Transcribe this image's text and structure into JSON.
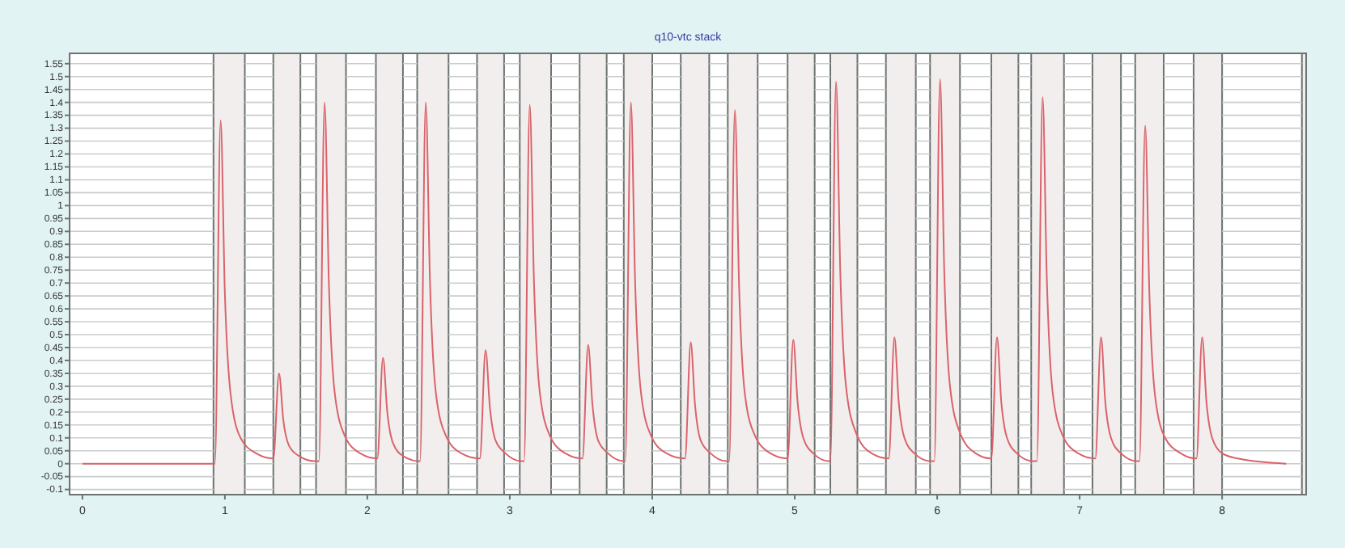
{
  "chart_data": {
    "type": "line",
    "title": "q10-vtc stack",
    "xlim": [
      -0.09,
      8.59
    ],
    "xticks": [
      0,
      1,
      2,
      3,
      4,
      5,
      6,
      7,
      8
    ],
    "ylim": [
      -0.12,
      1.59
    ],
    "yticks": [
      -0.1,
      -0.05,
      0,
      0.05,
      0.1,
      0.15,
      0.2,
      0.25,
      0.3,
      0.35,
      0.4,
      0.45,
      0.5,
      0.55,
      0.6,
      0.65,
      0.7,
      0.75,
      0.8,
      0.85,
      0.9,
      0.95,
      1,
      1.05,
      1.1,
      1.15,
      1.2,
      1.25,
      1.3,
      1.35,
      1.4,
      1.45,
      1.5,
      1.55
    ],
    "grid": "y",
    "marker": "none",
    "line_style": "solid",
    "bands": [
      {
        "axis": "x",
        "from": -0.09,
        "to": 0.92,
        "color": "#ffffff"
      },
      {
        "axis": "x",
        "from": 1.14,
        "to": 1.34,
        "color": "#ffffff"
      },
      {
        "axis": "x",
        "from": 1.53,
        "to": 1.64,
        "color": "#ffffff"
      },
      {
        "axis": "x",
        "from": 1.85,
        "to": 2.06,
        "color": "#ffffff"
      },
      {
        "axis": "x",
        "from": 2.25,
        "to": 2.35,
        "color": "#ffffff"
      },
      {
        "axis": "x",
        "from": 2.57,
        "to": 2.77,
        "color": "#ffffff"
      },
      {
        "axis": "x",
        "from": 2.96,
        "to": 3.07,
        "color": "#ffffff"
      },
      {
        "axis": "x",
        "from": 3.29,
        "to": 3.49,
        "color": "#ffffff"
      },
      {
        "axis": "x",
        "from": 3.68,
        "to": 3.8,
        "color": "#ffffff"
      },
      {
        "axis": "x",
        "from": 4.0,
        "to": 4.2,
        "color": "#ffffff"
      },
      {
        "axis": "x",
        "from": 4.4,
        "to": 4.53,
        "color": "#ffffff"
      },
      {
        "axis": "x",
        "from": 4.74,
        "to": 4.95,
        "color": "#ffffff"
      },
      {
        "axis": "x",
        "from": 5.14,
        "to": 5.25,
        "color": "#ffffff"
      },
      {
        "axis": "x",
        "from": 5.44,
        "to": 5.64,
        "color": "#ffffff"
      },
      {
        "axis": "x",
        "from": 5.85,
        "to": 5.95,
        "color": "#ffffff"
      },
      {
        "axis": "x",
        "from": 6.16,
        "to": 6.38,
        "color": "#ffffff"
      },
      {
        "axis": "x",
        "from": 6.57,
        "to": 6.66,
        "color": "#ffffff"
      },
      {
        "axis": "x",
        "from": 6.89,
        "to": 7.09,
        "color": "#ffffff"
      },
      {
        "axis": "x",
        "from": 7.29,
        "to": 7.39,
        "color": "#ffffff"
      },
      {
        "axis": "x",
        "from": 7.59,
        "to": 7.8,
        "color": "#ffffff"
      },
      {
        "axis": "x",
        "from": 8.0,
        "to": 8.56,
        "color": "#ffffff"
      }
    ],
    "series": [
      {
        "color": "#d9636b",
        "x": [
          0,
          0.93,
          0.97,
          1.0,
          1.04,
          1.11,
          1.22,
          1.34,
          1.38,
          1.41,
          1.45,
          1.52,
          1.63,
          1.66,
          1.7,
          1.73,
          1.77,
          1.84,
          1.95,
          2.07,
          2.11,
          2.14,
          2.18,
          2.25,
          2.36,
          2.37,
          2.41,
          2.44,
          2.48,
          2.55,
          2.66,
          2.79,
          2.83,
          2.86,
          2.9,
          2.97,
          3.08,
          3.1,
          3.14,
          3.17,
          3.21,
          3.28,
          3.39,
          3.51,
          3.55,
          3.58,
          3.62,
          3.69,
          3.8,
          3.81,
          3.85,
          3.88,
          3.92,
          3.99,
          4.1,
          4.23,
          4.27,
          4.3,
          4.34,
          4.41,
          4.52,
          4.54,
          4.58,
          4.61,
          4.65,
          4.72,
          4.83,
          4.95,
          4.99,
          5.02,
          5.06,
          5.13,
          5.24,
          5.25,
          5.29,
          5.32,
          5.36,
          5.43,
          5.54,
          5.66,
          5.7,
          5.73,
          5.77,
          5.84,
          5.95,
          5.98,
          6.02,
          6.05,
          6.09,
          6.16,
          6.27,
          6.38,
          6.42,
          6.45,
          6.49,
          6.56,
          6.67,
          6.7,
          6.74,
          6.77,
          6.81,
          6.88,
          6.99,
          7.11,
          7.15,
          7.18,
          7.22,
          7.29,
          7.4,
          7.42,
          7.46,
          7.49,
          7.53,
          7.6,
          7.71,
          7.82,
          7.86,
          7.89,
          7.93,
          8.0,
          8.11,
          8.45
        ],
        "values": [
          0,
          0,
          1.33,
          0.66,
          0.27,
          0.1,
          0.04,
          0.02,
          0.35,
          0.17,
          0.07,
          0.03,
          0.01,
          0.01,
          1.4,
          0.7,
          0.28,
          0.11,
          0.04,
          0.02,
          0.41,
          0.2,
          0.08,
          0.03,
          0.01,
          0.01,
          1.4,
          0.7,
          0.28,
          0.11,
          0.04,
          0.02,
          0.44,
          0.22,
          0.09,
          0.04,
          0.01,
          0.01,
          1.39,
          0.7,
          0.28,
          0.11,
          0.04,
          0.02,
          0.46,
          0.23,
          0.09,
          0.04,
          0.01,
          0.01,
          1.4,
          0.7,
          0.28,
          0.11,
          0.04,
          0.02,
          0.47,
          0.23,
          0.09,
          0.04,
          0.01,
          0.01,
          1.37,
          0.68,
          0.27,
          0.11,
          0.04,
          0.02,
          0.48,
          0.24,
          0.1,
          0.04,
          0.01,
          0.01,
          1.48,
          0.74,
          0.3,
          0.12,
          0.04,
          0.02,
          0.49,
          0.24,
          0.1,
          0.04,
          0.01,
          0.01,
          1.49,
          0.74,
          0.3,
          0.12,
          0.04,
          0.02,
          0.49,
          0.24,
          0.1,
          0.04,
          0.01,
          0.01,
          1.42,
          0.71,
          0.28,
          0.11,
          0.04,
          0.02,
          0.49,
          0.24,
          0.1,
          0.04,
          0.01,
          0.01,
          1.31,
          0.65,
          0.26,
          0.1,
          0.04,
          0.02,
          0.49,
          0.24,
          0.1,
          0.04,
          0.02,
          0
        ]
      }
    ]
  }
}
